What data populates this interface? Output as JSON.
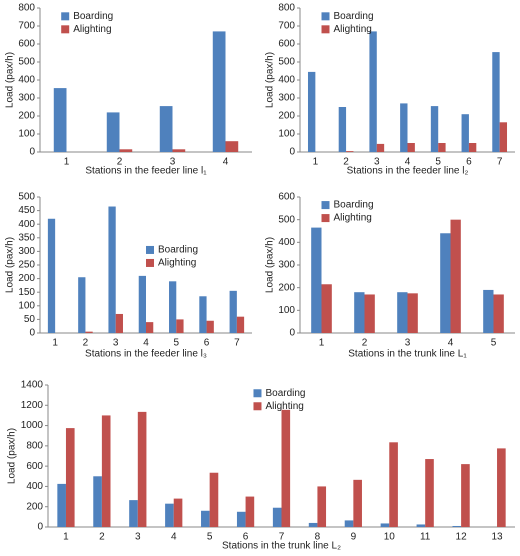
{
  "chart_data": [
    {
      "type": "bar",
      "ylabel": "Load (pax/h)",
      "xlabel": "Stations in the feeder line l₁",
      "categories": [
        "1",
        "2",
        "3",
        "4"
      ],
      "series": [
        {
          "name": "Boarding",
          "color": "#4f81bd",
          "values": [
            355,
            220,
            255,
            670
          ]
        },
        {
          "name": "Alighting",
          "color": "#c0504d",
          "values": [
            0,
            15,
            15,
            60
          ]
        }
      ],
      "ylim": [
        0,
        800
      ],
      "yticks": [
        0,
        100,
        200,
        300,
        400,
        500,
        600,
        700,
        800
      ],
      "legend": "upper left"
    },
    {
      "type": "bar",
      "ylabel": "Load (pax/h)",
      "xlabel": "Stations in the feeder line l₂",
      "categories": [
        "1",
        "2",
        "3",
        "4",
        "5",
        "6",
        "7"
      ],
      "series": [
        {
          "name": "Boarding",
          "color": "#4f81bd",
          "values": [
            445,
            250,
            670,
            270,
            255,
            210,
            555
          ]
        },
        {
          "name": "Alighting",
          "color": "#c0504d",
          "values": [
            0,
            5,
            45,
            50,
            50,
            50,
            165
          ]
        }
      ],
      "ylim": [
        0,
        800
      ],
      "yticks": [
        0,
        100,
        200,
        300,
        400,
        500,
        600,
        700,
        800
      ],
      "legend": "upper left"
    },
    {
      "type": "bar",
      "ylabel": "Load (pax/h)",
      "xlabel": "Stations in the feeder line l₃",
      "categories": [
        "1",
        "2",
        "3",
        "4",
        "5",
        "6",
        "7"
      ],
      "series": [
        {
          "name": "Boarding",
          "color": "#4f81bd",
          "values": [
            420,
            205,
            465,
            210,
            190,
            135,
            155
          ]
        },
        {
          "name": "Alighting",
          "color": "#c0504d",
          "values": [
            0,
            5,
            70,
            40,
            50,
            45,
            60
          ]
        }
      ],
      "ylim": [
        0,
        500
      ],
      "yticks": [
        0,
        50,
        100,
        150,
        200,
        250,
        300,
        350,
        400,
        450,
        500
      ],
      "legend": "center right"
    },
    {
      "type": "bar",
      "ylabel": "Load (pax/h)",
      "xlabel": "Stations in the trunk line L₁",
      "categories": [
        "1",
        "2",
        "3",
        "4",
        "5"
      ],
      "series": [
        {
          "name": "Boarding",
          "color": "#4f81bd",
          "values": [
            465,
            180,
            180,
            440,
            190
          ]
        },
        {
          "name": "Alighting",
          "color": "#c0504d",
          "values": [
            215,
            170,
            175,
            500,
            170
          ]
        }
      ],
      "ylim": [
        0,
        600
      ],
      "yticks": [
        0,
        100,
        200,
        300,
        400,
        500,
        600
      ],
      "legend": "upper left"
    },
    {
      "type": "bar",
      "ylabel": "Load (pax/h)",
      "xlabel": "Stations in the trunk line L₂",
      "categories": [
        "1",
        "2",
        "3",
        "4",
        "5",
        "6",
        "7",
        "8",
        "9",
        "10",
        "11",
        "12",
        "13"
      ],
      "series": [
        {
          "name": "Boarding",
          "color": "#4f81bd",
          "values": [
            425,
            500,
            265,
            230,
            160,
            150,
            190,
            40,
            65,
            35,
            25,
            10,
            0
          ]
        },
        {
          "name": "Alighting",
          "color": "#c0504d",
          "values": [
            975,
            1100,
            1135,
            280,
            535,
            300,
            1155,
            400,
            465,
            835,
            670,
            620,
            775
          ]
        }
      ],
      "ylim": [
        0,
        1400
      ],
      "yticks": [
        0,
        200,
        400,
        600,
        800,
        1000,
        1200,
        1400
      ],
      "legend": "upper center"
    }
  ]
}
